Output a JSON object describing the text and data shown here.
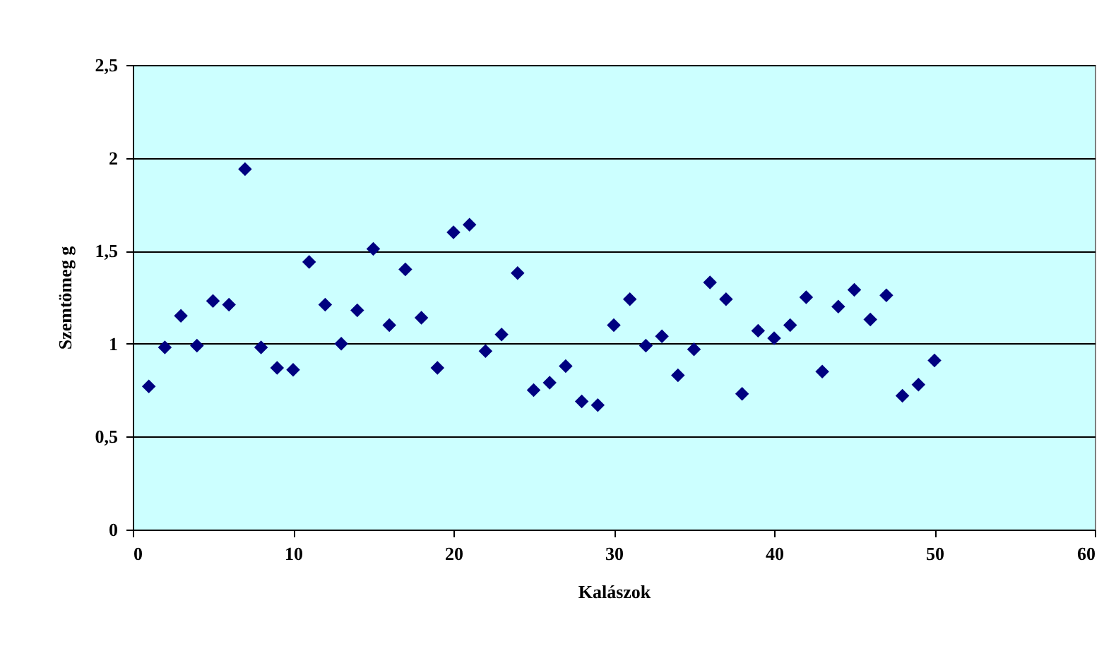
{
  "chart_data": {
    "type": "scatter",
    "xlabel": "Kalászok",
    "ylabel": "Szemtömeg g",
    "x": [
      1,
      2,
      3,
      4,
      5,
      6,
      7,
      8,
      9,
      10,
      11,
      12,
      13,
      14,
      15,
      16,
      17,
      18,
      19,
      20,
      21,
      22,
      23,
      24,
      25,
      26,
      27,
      28,
      29,
      30,
      31,
      32,
      33,
      34,
      35,
      36,
      37,
      38,
      39,
      40,
      41,
      42,
      43,
      44,
      45,
      46,
      47,
      48,
      49,
      50
    ],
    "series": [
      {
        "color": "#000080",
        "values": [
          0.77,
          0.98,
          1.15,
          0.99,
          1.23,
          1.21,
          1.94,
          0.98,
          0.87,
          0.86,
          1.44,
          1.21,
          1.0,
          1.18,
          1.51,
          1.1,
          1.4,
          1.14,
          0.87,
          1.6,
          1.64,
          0.96,
          1.05,
          1.38,
          0.75,
          0.79,
          0.88,
          0.69,
          0.67,
          1.1,
          1.24,
          0.99,
          1.04,
          0.83,
          0.97,
          1.33,
          1.24,
          0.73,
          1.07,
          1.03,
          1.1,
          1.25,
          0.85,
          1.2,
          1.29,
          1.13,
          1.26,
          0.72,
          0.78,
          0.91
        ]
      }
    ],
    "xlim": [
      0,
      60
    ],
    "xticks": [
      0,
      10,
      20,
      30,
      40,
      50,
      60
    ],
    "ylim": [
      0,
      2.5
    ],
    "yticks": [
      0,
      {
        "value": 0.5,
        "label": "0,5"
      },
      1,
      {
        "value": 1.5,
        "label": "1,5"
      },
      2,
      {
        "value": 2.5,
        "label": "2,5"
      }
    ],
    "grid": "y",
    "marker": "diamond",
    "legend": false
  }
}
